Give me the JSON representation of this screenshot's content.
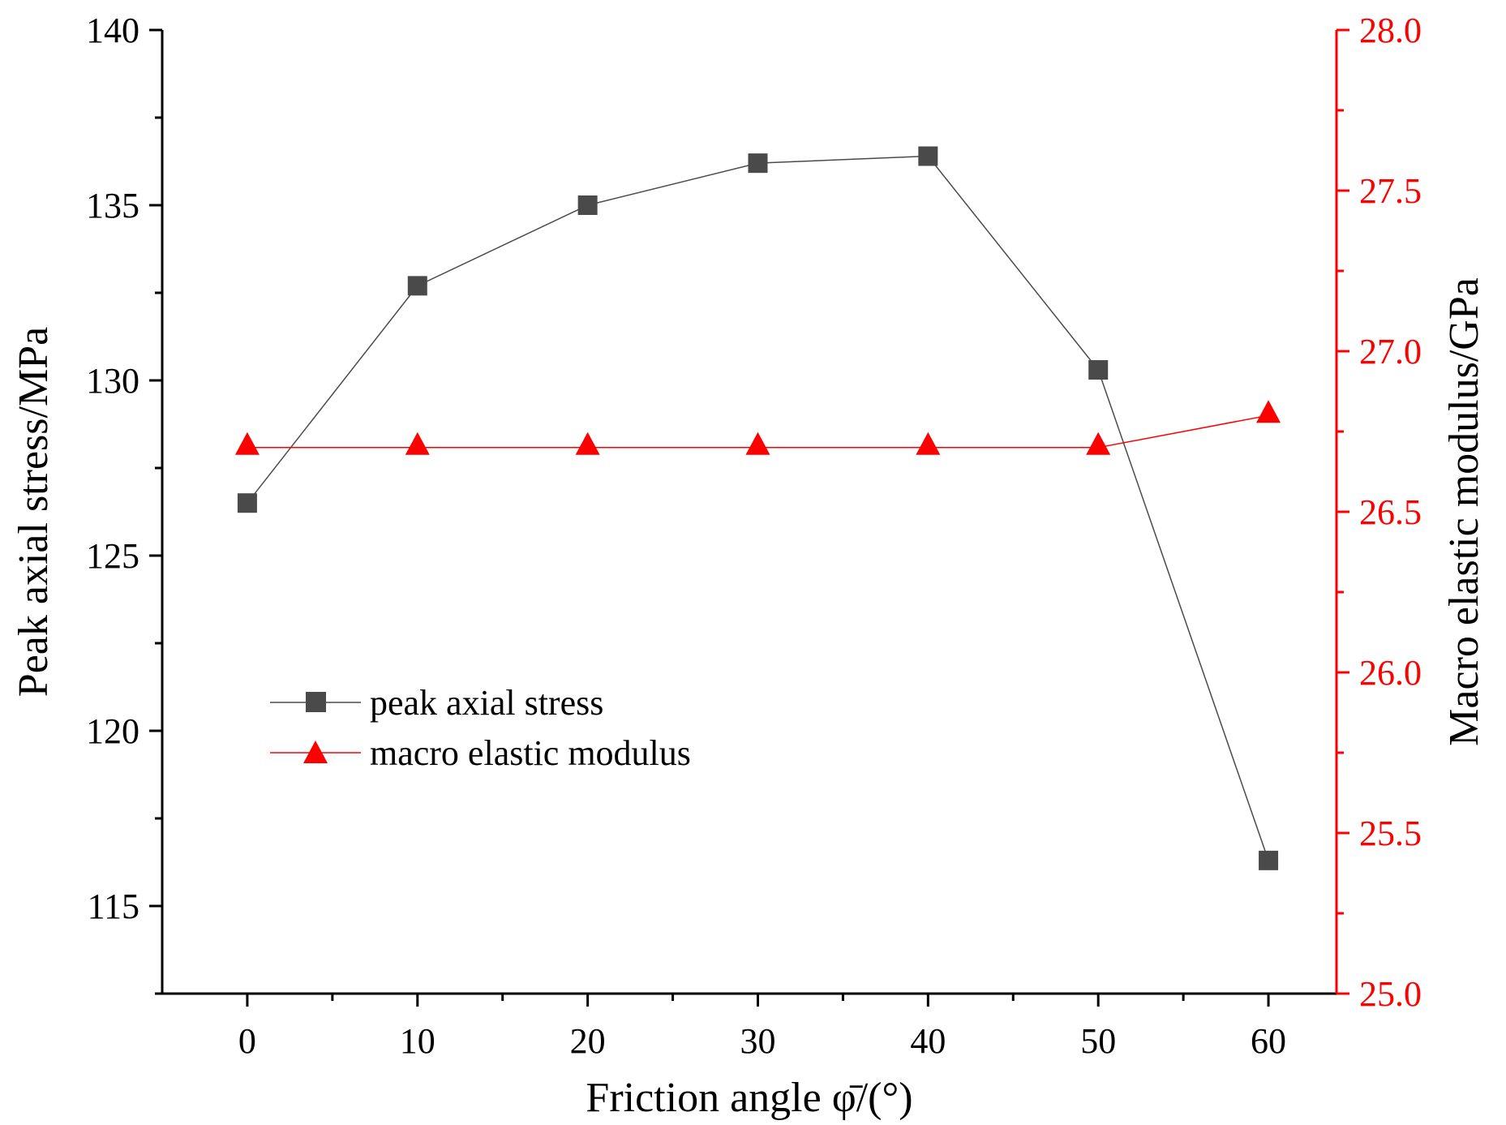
{
  "chart_data": {
    "type": "line",
    "x": [
      0,
      10,
      20,
      30,
      40,
      50,
      60
    ],
    "xlabel": "Friction angle φ̄/(°)",
    "x_ticks": [
      "0",
      "10",
      "20",
      "30",
      "40",
      "50",
      "60"
    ],
    "xlim": [
      -5,
      64
    ],
    "ylabel": "Peak axial stress/MPa",
    "y_ticks": [
      "115",
      "120",
      "125",
      "130",
      "135",
      "140"
    ],
    "ylim": [
      112.5,
      140
    ],
    "y2label": "Macro elastic modulus/GPa",
    "y2_ticks": [
      "25.0",
      "25.5",
      "26.0",
      "26.5",
      "27.0",
      "27.5",
      "28.0"
    ],
    "y2lim": [
      25.0,
      28.0
    ],
    "series": [
      {
        "name": "peak axial stress",
        "axis": "left",
        "marker": "square",
        "color": "#4a4a4a",
        "values": [
          126.5,
          132.7,
          135.0,
          136.2,
          136.4,
          130.3,
          116.3
        ]
      },
      {
        "name": "macro elastic modulus",
        "axis": "right",
        "marker": "triangle",
        "color": "#ff0000",
        "values": [
          26.7,
          26.7,
          26.7,
          26.7,
          26.7,
          26.7,
          26.8
        ]
      }
    ],
    "legend": "center-left",
    "grid": false
  }
}
